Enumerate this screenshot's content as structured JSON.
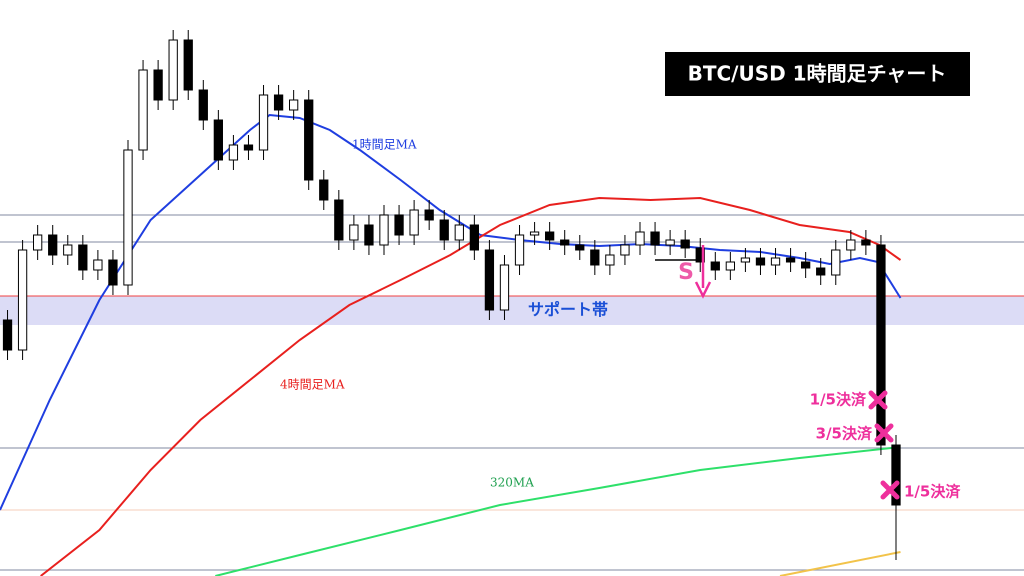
{
  "chart_data": {
    "type": "candlestick",
    "title": "BTC/USD  1時間足チャート",
    "xlim": [
      -0.5,
      67.5
    ],
    "ylim": [
      0,
      576
    ],
    "open": [
      256,
      226,
      326,
      341,
      321,
      331,
      306,
      316,
      291,
      426,
      506,
      476,
      536,
      486,
      456,
      416,
      431,
      426,
      481,
      466,
      476,
      396,
      376,
      336,
      351,
      331,
      361,
      341,
      366,
      356,
      336,
      351,
      326,
      266,
      311,
      341,
      344,
      336,
      331,
      326,
      311,
      321,
      331,
      344,
      331,
      336,
      328,
      314,
      306,
      314,
      318,
      311,
      318,
      314,
      308,
      301,
      326,
      336,
      331,
      131
    ],
    "high": [
      266,
      336,
      351,
      351,
      341,
      341,
      326,
      326,
      436,
      516,
      516,
      546,
      546,
      496,
      466,
      441,
      441,
      491,
      491,
      486,
      486,
      406,
      386,
      361,
      361,
      371,
      371,
      376,
      376,
      366,
      361,
      361,
      336,
      321,
      351,
      354,
      354,
      346,
      341,
      336,
      331,
      341,
      354,
      354,
      346,
      346,
      338,
      324,
      324,
      328,
      328,
      328,
      328,
      324,
      318,
      336,
      346,
      346,
      341,
      141
    ],
    "low": [
      216,
      216,
      316,
      311,
      311,
      296,
      296,
      281,
      281,
      416,
      466,
      466,
      476,
      446,
      406,
      406,
      416,
      416,
      456,
      456,
      386,
      366,
      326,
      326,
      321,
      321,
      331,
      331,
      346,
      326,
      326,
      316,
      256,
      256,
      301,
      331,
      326,
      321,
      316,
      301,
      301,
      311,
      321,
      321,
      321,
      318,
      304,
      296,
      296,
      304,
      301,
      301,
      304,
      298,
      291,
      291,
      316,
      321,
      121,
      16
    ],
    "close": [
      226,
      326,
      341,
      321,
      331,
      306,
      316,
      291,
      426,
      506,
      476,
      536,
      486,
      456,
      416,
      431,
      426,
      481,
      466,
      476,
      396,
      376,
      336,
      351,
      331,
      361,
      341,
      366,
      356,
      336,
      351,
      326,
      266,
      311,
      341,
      344,
      336,
      331,
      326,
      311,
      321,
      331,
      344,
      331,
      336,
      328,
      314,
      306,
      314,
      318,
      311,
      318,
      314,
      308,
      301,
      326,
      336,
      331,
      131,
      71
    ],
    "up_color": "#ffffff",
    "down_color": "#000000",
    "lines": [
      {
        "name": "1時間足MA",
        "color": "#1f3ee0",
        "x": [
          -0.5,
          2.8,
          6.1,
          9.5,
          12.8,
          16.1,
          17.4,
          19.4,
          21.4,
          23.4,
          26.1,
          28.7,
          31.4,
          34.0,
          36.7,
          39.3,
          42.0,
          44.7,
          47.3,
          50.0,
          52.6,
          54.6,
          56.6,
          57.8,
          59.3
        ],
        "values": [
          66,
          176,
          276,
          356,
          401,
          446,
          461,
          458,
          446,
          426,
          396,
          366,
          341,
          336,
          332,
          330,
          332,
          330,
          326,
          324,
          318,
          312,
          318,
          314,
          278
        ]
      },
      {
        "name": "4時間足MA",
        "color": "#e8201e",
        "x": [
          2.2,
          6.1,
          9.5,
          12.8,
          16.1,
          19.4,
          22.7,
          26.1,
          29.4,
          32.7,
          36.0,
          39.3,
          42.7,
          46.0,
          49.3,
          52.6,
          55.9,
          57.9,
          59.3
        ],
        "values": [
          0,
          46,
          106,
          156,
          196,
          236,
          271,
          296,
          321,
          351,
          371,
          378,
          376,
          378,
          366,
          351,
          344,
          331,
          316
        ]
      },
      {
        "name": "320MA",
        "color": "#2ee06a",
        "x": [
          13.8,
          19.4,
          26.1,
          32.7,
          39.3,
          46.0,
          52.6,
          59.3
        ],
        "values": [
          0,
          21,
          46,
          71,
          88,
          106,
          118,
          129
        ]
      },
      {
        "color": "#f2c34a",
        "x": [
          51.3,
          59.3
        ],
        "values": [
          0,
          24
        ]
      }
    ],
    "levels": [
      {
        "value": 361,
        "color": "#9aa0b4"
      },
      {
        "value": 334,
        "color": "#9aa0b4"
      },
      {
        "value": 128,
        "color": "#9aa0b4"
      },
      {
        "value": 6,
        "color": "#9aa0b4"
      },
      {
        "value": 66,
        "color": "#f8d8c8"
      }
    ],
    "support_band": {
      "label": "サポート帯",
      "from": 251,
      "to": 280,
      "color": "#dcdcf6",
      "edge": "#f04040"
    },
    "signal": "S",
    "exits": [
      "1/5決済",
      "3/5決済",
      "1/5決済"
    ]
  }
}
